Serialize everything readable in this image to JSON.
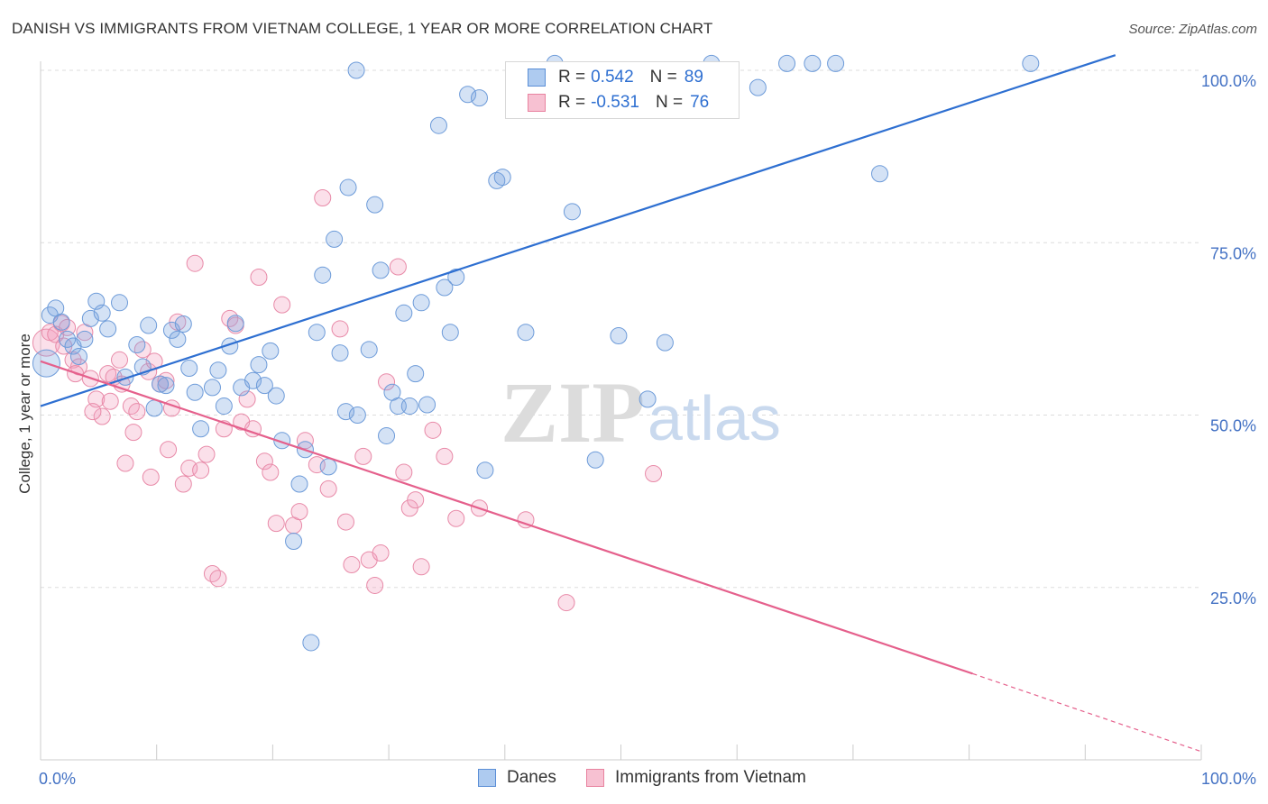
{
  "header": {
    "title": "DANISH VS IMMIGRANTS FROM VIETNAM COLLEGE, 1 YEAR OR MORE CORRELATION CHART",
    "source": "Source: ZipAtlas.com"
  },
  "watermark": {
    "zip": "ZIP",
    "atlas": "atlas"
  },
  "legend": {
    "rows": [
      {
        "r_label": "R =",
        "r_value": "0.542",
        "n_label": "N =",
        "n_value": "89",
        "fill": "#aecbf0",
        "stroke": "#5b8ed6"
      },
      {
        "r_label": "R =",
        "r_value": "-0.531",
        "n_label": "N =",
        "n_value": "76",
        "fill": "#f7c1d2",
        "stroke": "#e8829f"
      }
    ]
  },
  "bottom_legend": {
    "danes": "Danes",
    "vietnam": "Immigrants from Vietnam"
  },
  "colors": {
    "danes_fill": "rgba(120,165,225,0.32)",
    "danes_stroke": "#6d9bd9",
    "danes_line": "#2e6fd1",
    "vietnam_fill": "rgba(242,160,190,0.32)",
    "vietnam_stroke": "#e88aa8",
    "vietnam_line": "#e5608c",
    "grid": "#dddddd",
    "tick_text": "#4472c4"
  },
  "chart_data": {
    "type": "scatter",
    "title": "DANISH VS IMMIGRANTS FROM VIETNAM COLLEGE, 1 YEAR OR MORE CORRELATION CHART",
    "xlabel": "",
    "ylabel": "College, 1 year or more",
    "xlim": [
      0,
      100
    ],
    "ylim": [
      0,
      100
    ],
    "x_tick_labels": [
      "0.0%",
      "100.0%"
    ],
    "y_ticks": [
      25,
      50,
      75,
      100
    ],
    "y_tick_labels": [
      "25.0%",
      "50.0%",
      "75.0%",
      "100.0%"
    ],
    "grid": true,
    "legend_position": "top-center",
    "series": [
      {
        "name": "Danes",
        "r": 0.542,
        "n": 89,
        "trend": {
          "x0": 0,
          "y0": 51.3,
          "x1": 92.6,
          "y1": 102.2
        },
        "points": [
          [
            0.5,
            57.5
          ],
          [
            0.8,
            64.5
          ],
          [
            1.3,
            65.5
          ],
          [
            1.8,
            63.5
          ],
          [
            2.3,
            61
          ],
          [
            2.8,
            60
          ],
          [
            3.3,
            58.5
          ],
          [
            3.8,
            61
          ],
          [
            4.3,
            64
          ],
          [
            4.8,
            66.5
          ],
          [
            5.3,
            64.8
          ],
          [
            5.8,
            62.5
          ],
          [
            6.8,
            66.3
          ],
          [
            7.3,
            55.5
          ],
          [
            8.3,
            60.2
          ],
          [
            8.8,
            57
          ],
          [
            9.3,
            63
          ],
          [
            9.8,
            51
          ],
          [
            10.3,
            54.5
          ],
          [
            10.8,
            54.3
          ],
          [
            11.3,
            62.3
          ],
          [
            11.8,
            61
          ],
          [
            12.3,
            63.2
          ],
          [
            12.8,
            56.8
          ],
          [
            13.3,
            53.3
          ],
          [
            13.8,
            48
          ],
          [
            14.8,
            54
          ],
          [
            15.3,
            56.5
          ],
          [
            15.8,
            51.3
          ],
          [
            16.3,
            60
          ],
          [
            16.8,
            63.3
          ],
          [
            17.3,
            54
          ],
          [
            18.3,
            55
          ],
          [
            18.8,
            57.3
          ],
          [
            19.3,
            54.3
          ],
          [
            19.8,
            59.3
          ],
          [
            20.3,
            52.8
          ],
          [
            20.8,
            46.3
          ],
          [
            21.8,
            31.7
          ],
          [
            22.3,
            40
          ],
          [
            22.8,
            45
          ],
          [
            23.3,
            17
          ],
          [
            23.8,
            62
          ],
          [
            24.3,
            70.3
          ],
          [
            24.8,
            42.5
          ],
          [
            25.3,
            75.5
          ],
          [
            25.8,
            59
          ],
          [
            26.3,
            50.5
          ],
          [
            26.5,
            83
          ],
          [
            27.3,
            50
          ],
          [
            28.3,
            59.5
          ],
          [
            28.8,
            80.5
          ],
          [
            29.3,
            71
          ],
          [
            29.8,
            47
          ],
          [
            30.3,
            53.3
          ],
          [
            30.8,
            51.3
          ],
          [
            31.3,
            64.8
          ],
          [
            31.8,
            51.3
          ],
          [
            32.3,
            56
          ],
          [
            32.8,
            66.3
          ],
          [
            33.3,
            51.5
          ],
          [
            34.3,
            92
          ],
          [
            34.8,
            68.5
          ],
          [
            35.3,
            62
          ],
          [
            35.8,
            70
          ],
          [
            36.8,
            96.5
          ],
          [
            37.8,
            96
          ],
          [
            38.3,
            42
          ],
          [
            39.3,
            84
          ],
          [
            39.8,
            84.5
          ],
          [
            41.8,
            62
          ],
          [
            44.3,
            101
          ],
          [
            45.8,
            79.5
          ],
          [
            47.8,
            43.5
          ],
          [
            49.8,
            61.5
          ],
          [
            52.3,
            52.3
          ],
          [
            53.8,
            60.5
          ],
          [
            57.8,
            101
          ],
          [
            61.8,
            97.5
          ],
          [
            64.3,
            101
          ],
          [
            66.5,
            101
          ],
          [
            68.5,
            101
          ],
          [
            72.3,
            85
          ],
          [
            85.3,
            101
          ],
          [
            43.5,
            99
          ],
          [
            49.5,
            99
          ],
          [
            53.5,
            100
          ],
          [
            58.5,
            100
          ],
          [
            27.2,
            100
          ]
        ]
      },
      {
        "name": "Immigrants from Vietnam",
        "r": -0.531,
        "n": 76,
        "trend": {
          "x0": 0,
          "y0": 57.8,
          "x1": 80.3,
          "y1": 12.5,
          "dash_to_x": 100,
          "dash_to_y": 1.2
        },
        "points": [
          [
            0.5,
            60.5
          ],
          [
            0.8,
            62
          ],
          [
            1.3,
            61.7
          ],
          [
            1.8,
            63.3
          ],
          [
            2.3,
            62.7
          ],
          [
            2.8,
            58
          ],
          [
            3.3,
            57
          ],
          [
            3.8,
            62
          ],
          [
            4.3,
            55.3
          ],
          [
            4.8,
            52.3
          ],
          [
            5.3,
            49.8
          ],
          [
            5.8,
            56
          ],
          [
            6.3,
            55.5
          ],
          [
            6.8,
            58
          ],
          [
            7.3,
            43
          ],
          [
            7.8,
            51.3
          ],
          [
            8.3,
            50.5
          ],
          [
            8.8,
            59.5
          ],
          [
            9.3,
            56.3
          ],
          [
            9.8,
            57.8
          ],
          [
            10.3,
            54.5
          ],
          [
            10.8,
            55
          ],
          [
            11.3,
            51
          ],
          [
            11.8,
            63.5
          ],
          [
            12.3,
            40
          ],
          [
            12.8,
            42.3
          ],
          [
            13.3,
            72
          ],
          [
            13.8,
            42
          ],
          [
            14.3,
            44.3
          ],
          [
            14.8,
            27
          ],
          [
            15.3,
            26.3
          ],
          [
            15.8,
            48
          ],
          [
            16.3,
            64
          ],
          [
            16.8,
            63
          ],
          [
            17.3,
            49
          ],
          [
            17.8,
            52.3
          ],
          [
            18.3,
            48
          ],
          [
            18.8,
            70
          ],
          [
            19.3,
            43.3
          ],
          [
            19.8,
            41.7
          ],
          [
            20.3,
            34.3
          ],
          [
            20.8,
            66
          ],
          [
            21.8,
            34
          ],
          [
            22.3,
            36
          ],
          [
            22.8,
            46.3
          ],
          [
            23.8,
            42.8
          ],
          [
            24.3,
            81.5
          ],
          [
            24.8,
            39.3
          ],
          [
            25.8,
            62.5
          ],
          [
            26.3,
            34.5
          ],
          [
            26.8,
            28.3
          ],
          [
            27.8,
            44
          ],
          [
            28.3,
            29
          ],
          [
            28.8,
            25.3
          ],
          [
            29.3,
            30
          ],
          [
            29.8,
            54.8
          ],
          [
            30.8,
            71.5
          ],
          [
            31.3,
            41.7
          ],
          [
            31.8,
            36.5
          ],
          [
            32.3,
            37.7
          ],
          [
            32.8,
            28
          ],
          [
            33.8,
            47.8
          ],
          [
            34.8,
            44
          ],
          [
            35.8,
            35
          ],
          [
            37.8,
            36.5
          ],
          [
            41.8,
            34.8
          ],
          [
            45.3,
            22.8
          ],
          [
            52.8,
            41.5
          ],
          [
            2.0,
            60
          ],
          [
            3.0,
            56
          ],
          [
            4.5,
            50.5
          ],
          [
            6.0,
            52
          ],
          [
            7.0,
            54.5
          ],
          [
            8.0,
            47.5
          ],
          [
            9.5,
            41
          ],
          [
            11.0,
            45
          ]
        ]
      }
    ]
  }
}
